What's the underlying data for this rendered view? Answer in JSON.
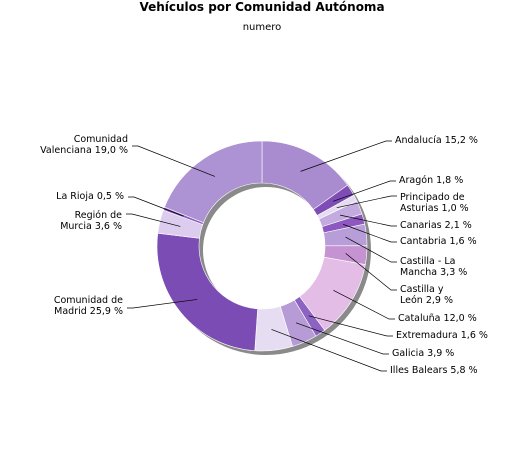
{
  "chart_data": {
    "type": "pie",
    "variant": "donut",
    "title": "Vehículos por Comunidad Autónoma",
    "subtitle": "numero",
    "slices": [
      {
        "label": "Andalucía",
        "value": 15.2,
        "value_text": "15,2 %",
        "color": "#a98cd0"
      },
      {
        "label": "Aragón",
        "value": 1.8,
        "value_text": "1,8 %",
        "color": "#7d4cb5"
      },
      {
        "label": "Principado de Asturias",
        "value": 1.0,
        "value_text": "1,0 %",
        "color": "#e6dcf2"
      },
      {
        "label": "Canarias",
        "value": 2.1,
        "value_text": "2,1 %",
        "color": "#c3abdf"
      },
      {
        "label": "Cantabria",
        "value": 1.6,
        "value_text": "1,6 %",
        "color": "#8d59c0"
      },
      {
        "label": "Castilla - La Mancha",
        "value": 3.3,
        "value_text": "3,3 %",
        "color": "#b89ed9"
      },
      {
        "label": "Castilla y León",
        "value": 2.9,
        "value_text": "2,9 %",
        "color": "#c693d2"
      },
      {
        "label": "Cataluña",
        "value": 12.0,
        "value_text": "12,0 %",
        "color": "#e3bde6"
      },
      {
        "label": "Extremadura",
        "value": 1.6,
        "value_text": "1,6 %",
        "color": "#8c63c2"
      },
      {
        "label": "Galicia",
        "value": 3.9,
        "value_text": "3,9 %",
        "color": "#b69bd6"
      },
      {
        "label": "Illes Balears",
        "value": 5.8,
        "value_text": "5,8 %",
        "color": "#e6ddf2"
      },
      {
        "label": "Comunidad de Madrid",
        "value": 25.9,
        "value_text": "25,9 %",
        "color": "#7b4db4"
      },
      {
        "label": "Región de Murcia",
        "value": 3.6,
        "value_text": "3,6 %",
        "color": "#dcccee"
      },
      {
        "label": "La Rioja",
        "value": 0.5,
        "value_text": "0,5 %",
        "color": "#8b5dc0"
      },
      {
        "label": "Comunidad Valenciana",
        "value": 19.0,
        "value_text": "19,0 %",
        "color": "#ad93d3"
      }
    ]
  }
}
